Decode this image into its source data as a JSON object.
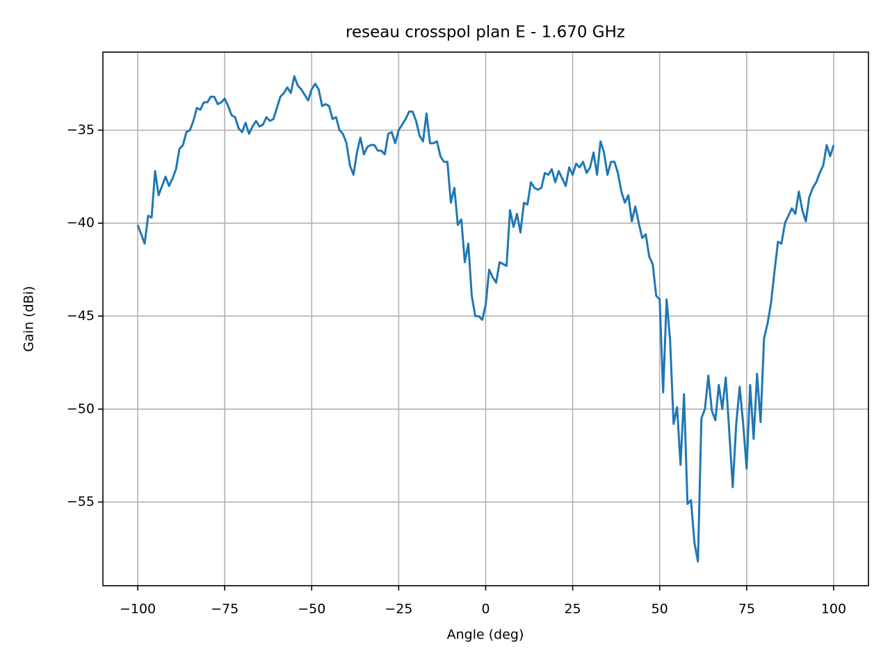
{
  "chart_data": {
    "type": "line",
    "title": "reseau crosspol plan E - 1.670 GHz",
    "x_label": "Angle (deg)",
    "y_label": "Gain (dBi)",
    "color": "#1f77b4",
    "grid": true,
    "xlim": [
      -110,
      110
    ],
    "ylim": [
      -59.5,
      -30.8
    ],
    "xticks": [
      {
        "value": -100,
        "label": "−100"
      },
      {
        "value": -75,
        "label": "−75"
      },
      {
        "value": -50,
        "label": "−50"
      },
      {
        "value": -25,
        "label": "−25"
      },
      0,
      25,
      50,
      75,
      100
    ],
    "yticks": [
      {
        "value": -55,
        "label": "−55"
      },
      {
        "value": -50,
        "label": "−50"
      },
      {
        "value": -45,
        "label": "−45"
      },
      {
        "value": -40,
        "label": "−40"
      },
      {
        "value": -35,
        "label": "−35"
      }
    ],
    "x": [
      -100,
      -99,
      -98,
      -97,
      -96,
      -95,
      -94,
      -93,
      -92,
      -91,
      -90,
      -89,
      -88,
      -87,
      -86,
      -85,
      -84,
      -83,
      -82,
      -81,
      -80,
      -79,
      -78,
      -77,
      -76,
      -75,
      -74,
      -73,
      -72,
      -71,
      -70,
      -69,
      -68,
      -67,
      -66,
      -65,
      -64,
      -63,
      -62,
      -61,
      -60,
      -59,
      -58,
      -57,
      -56,
      -55,
      -54,
      -53,
      -52,
      -51,
      -50,
      -49,
      -48,
      -47,
      -46,
      -45,
      -44,
      -43,
      -42,
      -41,
      -40,
      -39,
      -38,
      -37,
      -36,
      -35,
      -34,
      -33,
      -32,
      -31,
      -30,
      -29,
      -28,
      -27,
      -26,
      -25,
      -24,
      -23,
      -22,
      -21,
      -20,
      -19,
      -18,
      -17,
      -16,
      -15,
      -14,
      -13,
      -12,
      -11,
      -10,
      -9,
      -8,
      -7,
      -6,
      -5,
      -4,
      -3,
      -2,
      -1,
      0,
      1,
      2,
      3,
      4,
      5,
      6,
      7,
      8,
      9,
      10,
      11,
      12,
      13,
      14,
      15,
      16,
      17,
      18,
      19,
      20,
      21,
      22,
      23,
      24,
      25,
      26,
      27,
      28,
      29,
      30,
      31,
      32,
      33,
      34,
      35,
      36,
      37,
      38,
      39,
      40,
      41,
      42,
      43,
      44,
      45,
      46,
      47,
      48,
      49,
      50,
      51,
      52,
      53,
      54,
      55,
      56,
      57,
      58,
      59,
      60,
      61,
      62,
      63,
      64,
      65,
      66,
      67,
      68,
      69,
      70,
      71,
      72,
      73,
      74,
      75,
      76,
      77,
      78,
      79,
      80,
      81,
      82,
      83,
      84,
      85,
      86,
      87,
      88,
      89,
      90,
      91,
      92,
      93,
      94,
      95,
      96,
      97,
      98,
      99,
      100
    ],
    "values": [
      -40.1,
      -40.6,
      -41.1,
      -39.6,
      -39.7,
      -37.2,
      -38.5,
      -38.0,
      -37.5,
      -38.0,
      -37.6,
      -37.1,
      -36.0,
      -35.8,
      -35.1,
      -35.0,
      -34.5,
      -33.8,
      -33.9,
      -33.5,
      -33.5,
      -33.2,
      -33.2,
      -33.6,
      -33.5,
      -33.3,
      -33.7,
      -34.2,
      -34.3,
      -34.9,
      -35.1,
      -34.6,
      -35.2,
      -34.8,
      -34.5,
      -34.8,
      -34.7,
      -34.3,
      -34.5,
      -34.4,
      -33.8,
      -33.2,
      -33.0,
      -32.7,
      -33.0,
      -32.1,
      -32.6,
      -32.8,
      -33.1,
      -33.4,
      -32.8,
      -32.5,
      -32.8,
      -33.7,
      -33.6,
      -33.7,
      -34.4,
      -34.3,
      -35.0,
      -35.2,
      -35.7,
      -36.9,
      -37.4,
      -36.2,
      -35.4,
      -36.3,
      -35.9,
      -35.8,
      -35.8,
      -36.1,
      -36.1,
      -36.3,
      -35.2,
      -35.1,
      -35.7,
      -35.0,
      -34.7,
      -34.4,
      -34.0,
      -34.0,
      -34.5,
      -35.3,
      -35.6,
      -34.1,
      -35.7,
      -35.7,
      -35.6,
      -36.4,
      -36.7,
      -36.7,
      -38.9,
      -38.1,
      -40.1,
      -39.8,
      -42.1,
      -41.1,
      -43.9,
      -45.0,
      -45.0,
      -45.2,
      -44.4,
      -42.5,
      -42.9,
      -43.2,
      -42.1,
      -42.2,
      -42.3,
      -39.3,
      -40.2,
      -39.5,
      -40.5,
      -38.9,
      -39.0,
      -37.8,
      -38.1,
      -38.2,
      -38.1,
      -37.3,
      -37.4,
      -37.1,
      -37.8,
      -37.2,
      -37.6,
      -38.0,
      -37.0,
      -37.4,
      -36.8,
      -37.0,
      -36.7,
      -37.3,
      -37.0,
      -36.2,
      -37.4,
      -35.6,
      -36.2,
      -37.4,
      -36.7,
      -36.7,
      -37.3,
      -38.3,
      -38.9,
      -38.5,
      -39.9,
      -39.1,
      -40.0,
      -40.8,
      -40.6,
      -41.8,
      -42.2,
      -43.9,
      -44.1,
      -49.1,
      -44.1,
      -46.3,
      -50.8,
      -49.9,
      -53.0,
      -49.2,
      -55.1,
      -54.9,
      -57.2,
      -58.2,
      -50.5,
      -50.0,
      -48.2,
      -50.1,
      -50.6,
      -48.7,
      -50.0,
      -48.3,
      -51.2,
      -54.2,
      -50.8,
      -48.8,
      -50.8,
      -53.2,
      -48.7,
      -51.6,
      -48.1,
      -50.7,
      -46.2,
      -45.4,
      -44.3,
      -42.6,
      -41.0,
      -41.1,
      -40.0,
      -39.6,
      -39.2,
      -39.5,
      -38.3,
      -39.3,
      -39.9,
      -38.6,
      -38.1,
      -37.8,
      -37.3,
      -36.9,
      -35.8,
      -36.4,
      -35.8
    ]
  }
}
